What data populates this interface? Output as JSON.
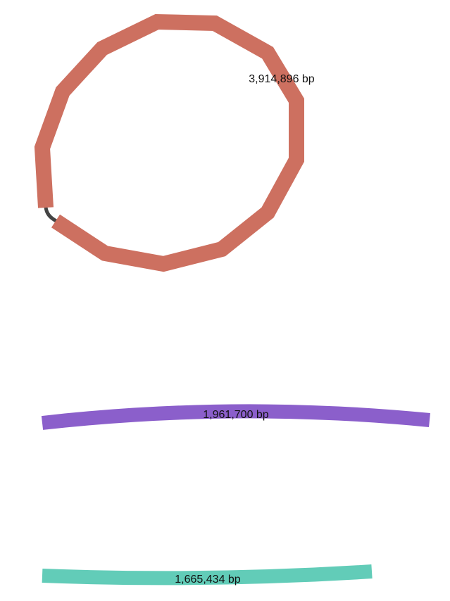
{
  "contigs": [
    {
      "id": "contig-1",
      "label": "3,914,896 bp",
      "shape": "circular",
      "color": "#cd7060"
    },
    {
      "id": "contig-2",
      "label": "1,961,700 bp",
      "shape": "linear",
      "color": "#8b5fcb"
    },
    {
      "id": "contig-3",
      "label": "1,665,434 bp",
      "shape": "linear",
      "color": "#62ccb8"
    }
  ],
  "link_color": "#444444"
}
